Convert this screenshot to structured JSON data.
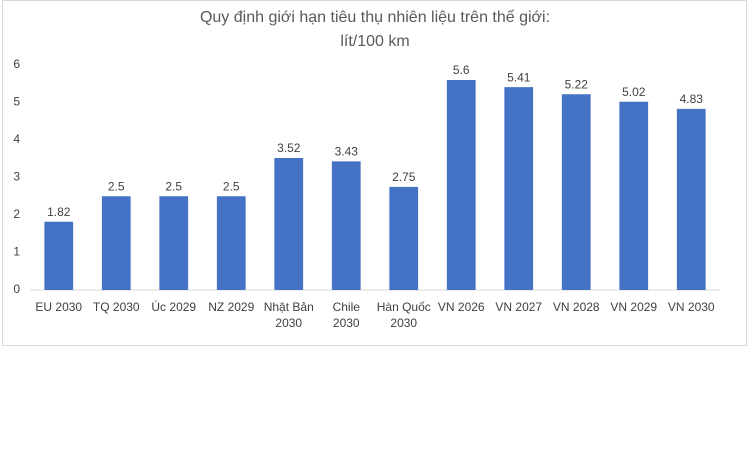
{
  "chart_data": {
    "type": "bar",
    "title": "Quy định giới hạn tiêu thụ nhiên liệu trên thế giới:",
    "subtitle": "lít/100 km",
    "categories": [
      "EU 2030",
      "TQ 2030",
      "Úc 2029",
      "NZ 2029",
      "Nhật Bản 2030",
      "Chile 2030",
      "Hàn Quốc 2030",
      "VN 2026",
      "VN 2027",
      "VN 2028",
      "VN 2029",
      "VN 2030"
    ],
    "values": [
      1.82,
      2.5,
      2.5,
      2.5,
      3.52,
      3.43,
      2.75,
      5.6,
      5.41,
      5.22,
      5.02,
      4.83
    ],
    "color": "#4472c4",
    "ylim": [
      0,
      6
    ],
    "yticks": [
      0,
      1,
      2,
      3,
      4,
      5,
      6
    ],
    "grid": false
  }
}
